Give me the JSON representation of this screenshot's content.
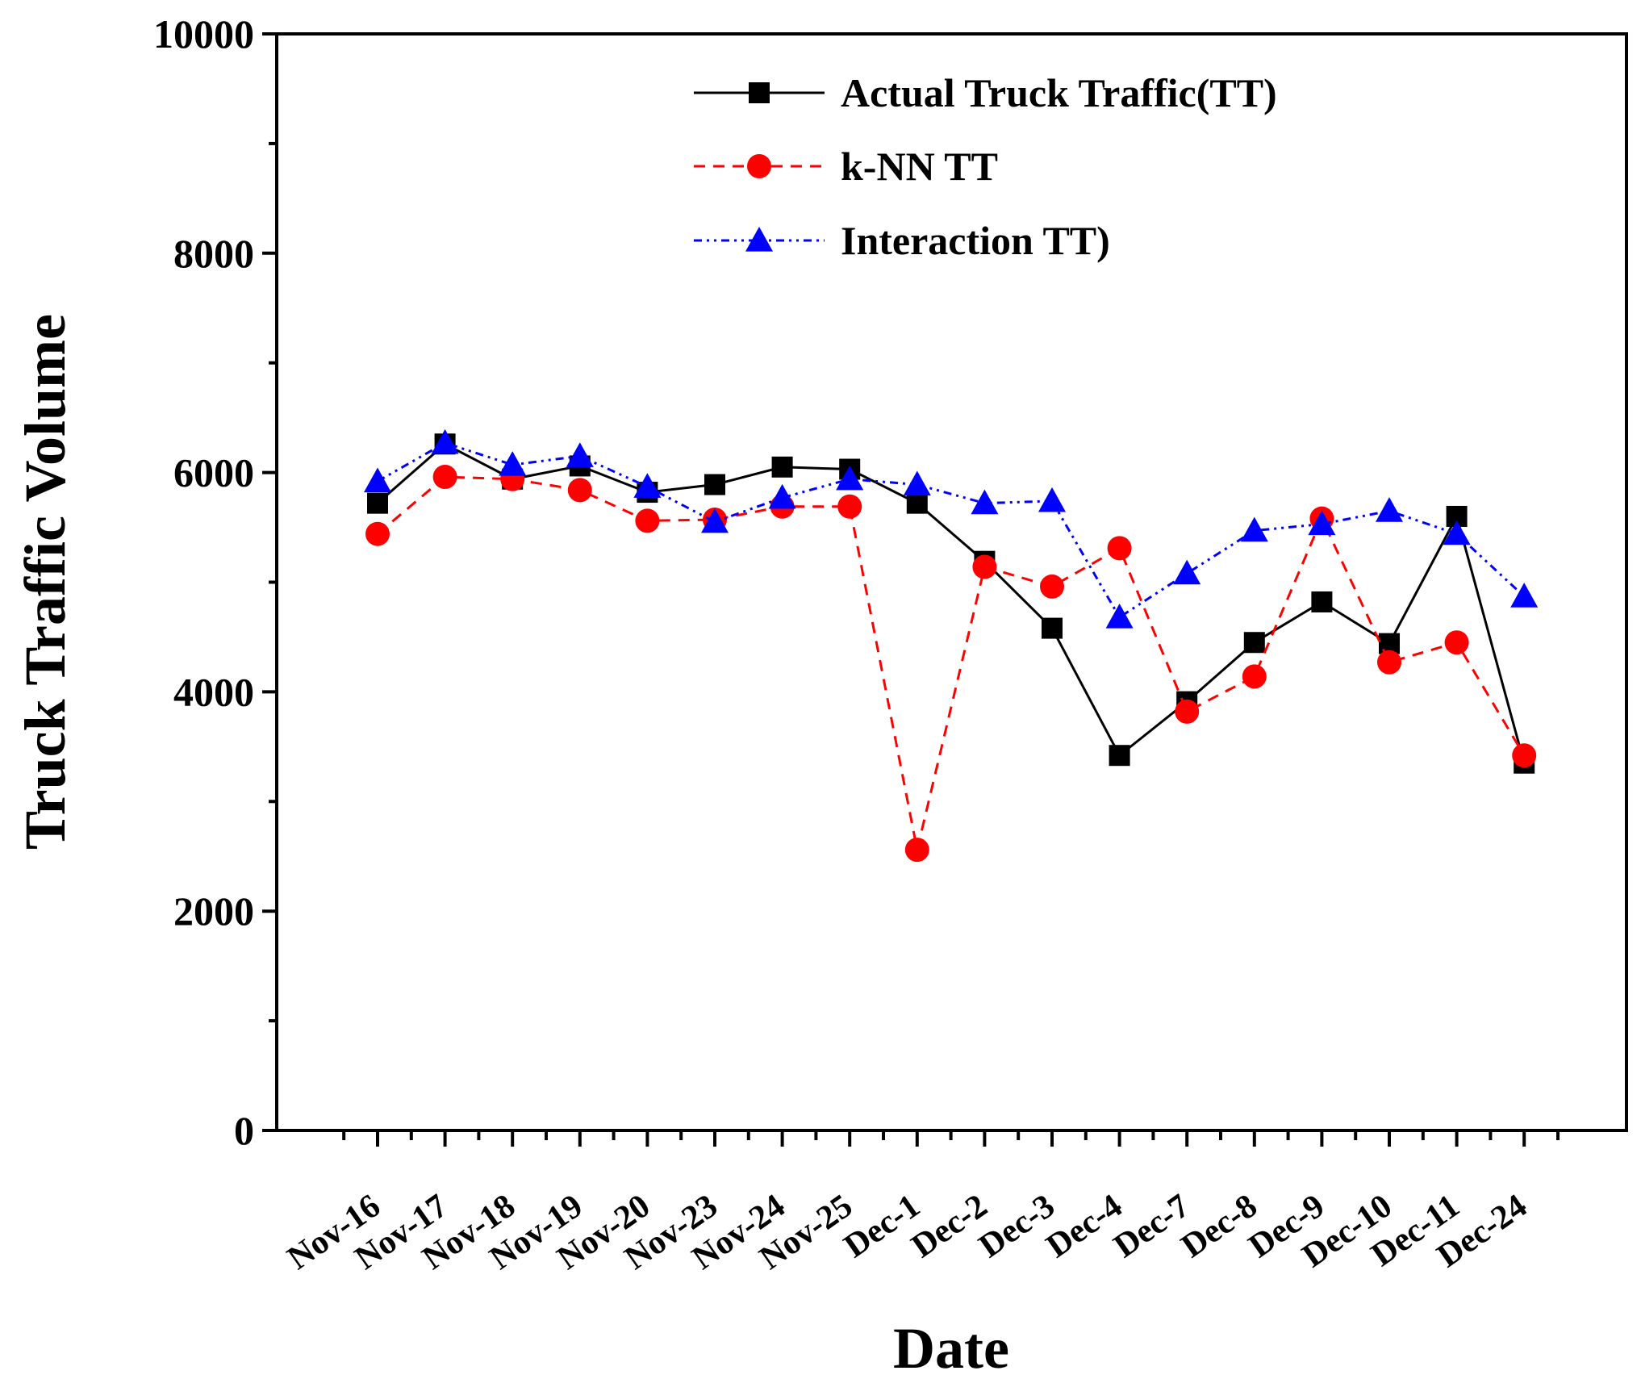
{
  "chart_data": {
    "type": "line",
    "title": "",
    "xlabel": "Date",
    "ylabel": "Truck Traffic Volume",
    "ylim": [
      0,
      10000
    ],
    "yticks": [
      0,
      2000,
      4000,
      6000,
      8000,
      10000
    ],
    "ytick_labels": [
      "0",
      "2000",
      "4000",
      "6000",
      "8000",
      "10000"
    ],
    "grid": false,
    "legend_position": "top-right",
    "categories": [
      "Nov-16",
      "Nov-17",
      "Nov-18",
      "Nov-19",
      "Nov-20",
      "Nov-23",
      "Nov-24",
      "Nov-25",
      "Dec-1",
      "Dec-2",
      "Dec-3",
      "Dec-4",
      "Dec-7",
      "Dec-8",
      "Dec-9",
      "Dec-10",
      "Dec-11",
      "Dec-24"
    ],
    "series": [
      {
        "name": "Actual Truck Traffic(TT)",
        "color": "#000000",
        "marker": "square",
        "dash": "solid",
        "values": [
          5720,
          6260,
          5940,
          6060,
          5820,
          5890,
          6050,
          6030,
          5720,
          5190,
          4580,
          3420,
          3910,
          4450,
          4820,
          4440,
          5600,
          3350
        ]
      },
      {
        "name": "k-NN TT",
        "color": "#ff0000",
        "marker": "circle",
        "dash": "dash",
        "values": [
          5440,
          5960,
          5940,
          5840,
          5560,
          5570,
          5690,
          5690,
          2560,
          5140,
          4960,
          5310,
          3820,
          4140,
          5580,
          4270,
          4450,
          3420
        ]
      },
      {
        "name": "Interaction TT)",
        "color": "#0000ff",
        "marker": "triangle",
        "dash": "dashdotdot",
        "values": [
          5920,
          6270,
          6070,
          6150,
          5870,
          5550,
          5770,
          5940,
          5890,
          5720,
          5740,
          4680,
          5080,
          5470,
          5530,
          5650,
          5440,
          4870
        ]
      }
    ]
  }
}
